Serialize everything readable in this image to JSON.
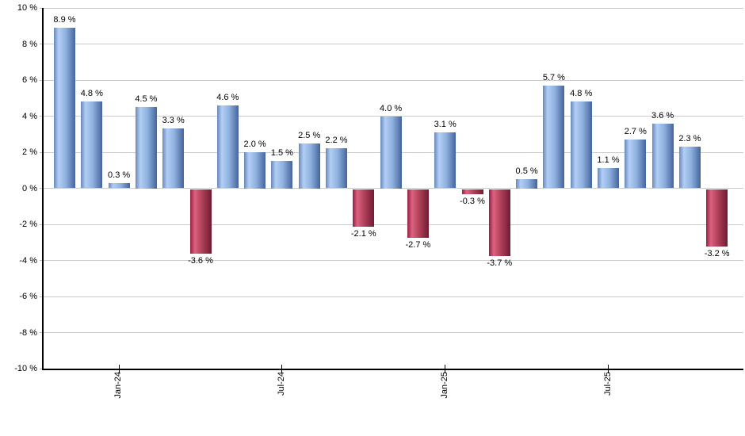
{
  "chart_data": {
    "type": "bar",
    "title": "",
    "unit": "%",
    "values": [
      8.9,
      4.8,
      0.3,
      4.5,
      3.3,
      -3.6,
      4.6,
      2.0,
      1.5,
      2.5,
      2.2,
      -2.1,
      4.0,
      -2.7,
      3.1,
      -0.3,
      -3.7,
      0.5,
      5.7,
      4.8,
      1.1,
      2.7,
      3.6,
      2.3,
      -3.2
    ],
    "bar_labels": [
      "8.9 %",
      "4.8 %",
      "0.3 %",
      "4.5 %",
      "3.3 %",
      "-3.6 %",
      "4.6 %",
      "2.0 %",
      "1.5 %",
      "2.5 %",
      "2.2 %",
      "-2.1 %",
      "4.0 %",
      "-2.7 %",
      "3.1 %",
      "-0.3 %",
      "-3.7 %",
      "0.5 %",
      "5.7 %",
      "4.8 %",
      "1.1 %",
      "2.7 %",
      "3.6 %",
      "2.3 %",
      "-3.2 %"
    ],
    "x_ticks": [
      {
        "label": "Jan-24",
        "bar_index": 2
      },
      {
        "label": "Jul-24",
        "bar_index": 8
      },
      {
        "label": "Jan-25",
        "bar_index": 14
      },
      {
        "label": "Jul-25",
        "bar_index": 20
      }
    ],
    "y_tick_labels": [
      "10 %",
      "8 %",
      "6 %",
      "4 %",
      "2 %",
      "0 %",
      "-2 %",
      "-4 %",
      "-6 %",
      "-8 %",
      "-10 %"
    ],
    "ylim": [
      -10,
      10
    ],
    "y_step": 2,
    "grid": true,
    "legend_position": "none",
    "colors": {
      "positive_bar_mid": "#8fb2e0",
      "positive_bar_highlight": "#b2cef4",
      "positive_bar_edge": "#44659d",
      "negative_bar_mid": "#b04059",
      "negative_bar_highlight": "#dc6280",
      "negative_bar_edge": "#701a33",
      "gridline": "#cccccc",
      "axis": "#000000",
      "text": "#000000",
      "background": "#ffffff"
    }
  }
}
